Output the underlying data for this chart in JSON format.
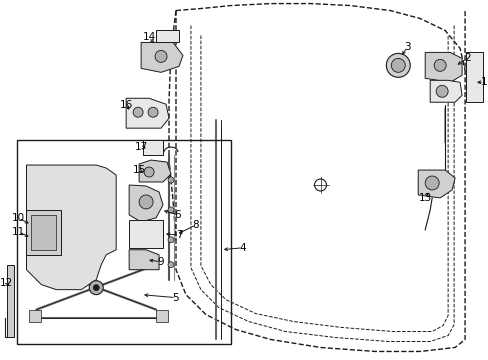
{
  "bg": "#ffffff",
  "lc": "#1a1a1a",
  "fc_light": "#e8e8e8",
  "fc_mid": "#d0d0d0",
  "fc_dark": "#b0b0b0",
  "fig_w": 4.89,
  "fig_h": 3.6,
  "dpi": 100
}
